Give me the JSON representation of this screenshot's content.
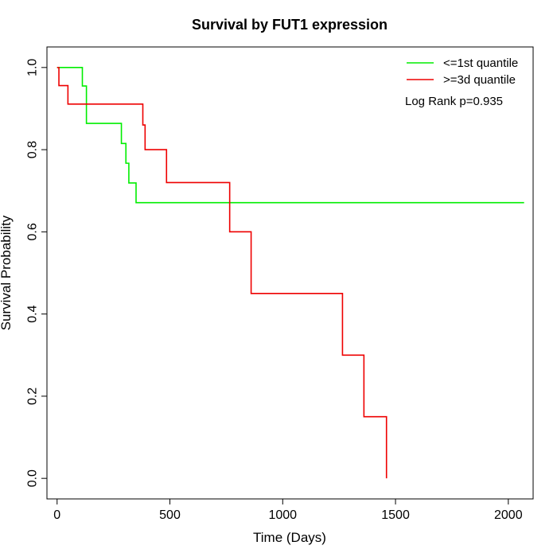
{
  "chart_data": {
    "type": "line",
    "title": "Survival by FUT1 expression",
    "xlabel": "Time (Days)",
    "ylabel": "Survival Probability",
    "xlim": [
      -45,
      2110
    ],
    "ylim": [
      -0.05,
      1.05
    ],
    "xticks": [
      0,
      500,
      1000,
      1500,
      2000
    ],
    "yticks": [
      0.0,
      0.2,
      0.4,
      0.6,
      0.8,
      1.0
    ],
    "xtick_labels": [
      "0",
      "500",
      "1000",
      "1500",
      "2000"
    ],
    "ytick_labels": [
      "0.0",
      "0.2",
      "0.4",
      "0.6",
      "0.8",
      "1.0"
    ],
    "grid": false,
    "legend_position": "top-right",
    "annotation": "Log Rank p=0.935",
    "series": [
      {
        "name": "<=1st quantile",
        "color": "#00ee00",
        "step": true,
        "x": [
          0,
          112,
          130,
          285,
          305,
          318,
          350,
          2070
        ],
        "y": [
          1.0,
          0.955,
          0.864,
          0.815,
          0.767,
          0.719,
          0.671,
          0.671
        ]
      },
      {
        "name": ">=3d quantile",
        "color": "#ee0000",
        "step": true,
        "x": [
          0,
          8,
          48,
          380,
          390,
          485,
          765,
          860,
          1265,
          1360,
          1460
        ],
        "y": [
          1.0,
          0.956,
          0.911,
          0.86,
          0.8,
          0.72,
          0.6,
          0.45,
          0.3,
          0.15,
          0.0
        ]
      }
    ]
  }
}
